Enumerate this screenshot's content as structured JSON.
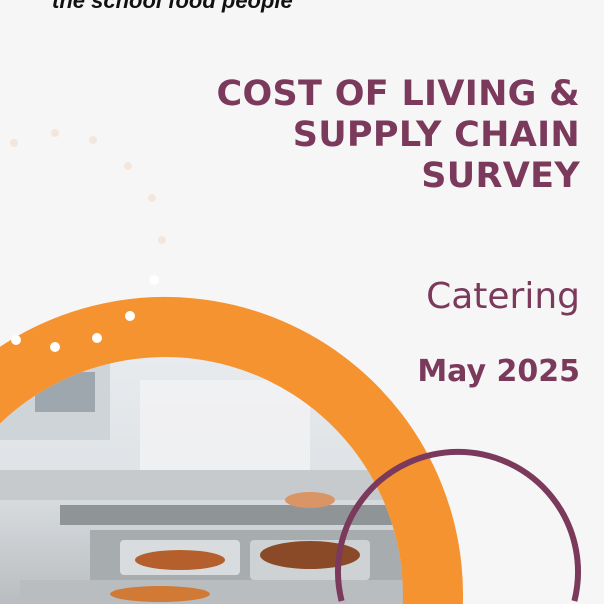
{
  "brand": {
    "tagline": "the school food people"
  },
  "cover": {
    "title_lines": [
      "COST OF LIVING &",
      "SUPPLY CHAIN",
      "SURVEY"
    ],
    "subtitle": "Catering",
    "date": "May 2025"
  },
  "colors": {
    "accent_orange": "#f59331",
    "brand_plum": "#7b3a5c",
    "background": "#f6f6f6"
  },
  "image": {
    "description_icon": "school-canteen-photo"
  }
}
